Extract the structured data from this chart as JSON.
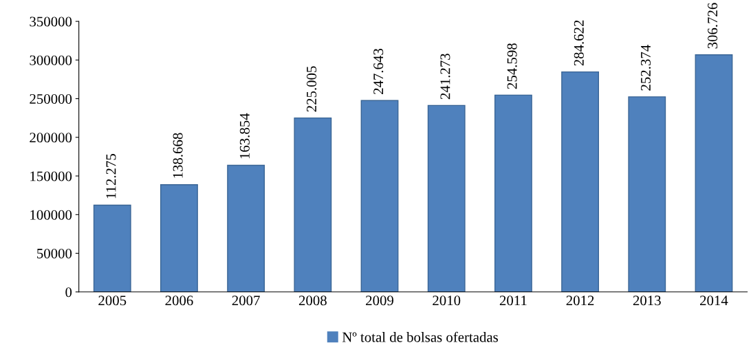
{
  "chart_data": {
    "type": "bar",
    "categories": [
      "2005",
      "2006",
      "2007",
      "2008",
      "2009",
      "2010",
      "2011",
      "2012",
      "2013",
      "2014"
    ],
    "series": [
      {
        "name": "Nº total de bolsas ofertadas",
        "color": "#4f81bd",
        "values": [
          112275,
          138668,
          163854,
          225005,
          247643,
          241273,
          254598,
          284622,
          252374,
          306726
        ],
        "value_labels": [
          "112.275",
          "138.668",
          "163.854",
          "225.005",
          "247.643",
          "241.273",
          "254.598",
          "284.622",
          "252.374",
          "306.726"
        ]
      }
    ],
    "ylim": [
      0,
      350000
    ],
    "yticks": [
      0,
      50000,
      100000,
      150000,
      200000,
      250000,
      300000,
      350000
    ],
    "grid": false,
    "legend": "bottom"
  }
}
